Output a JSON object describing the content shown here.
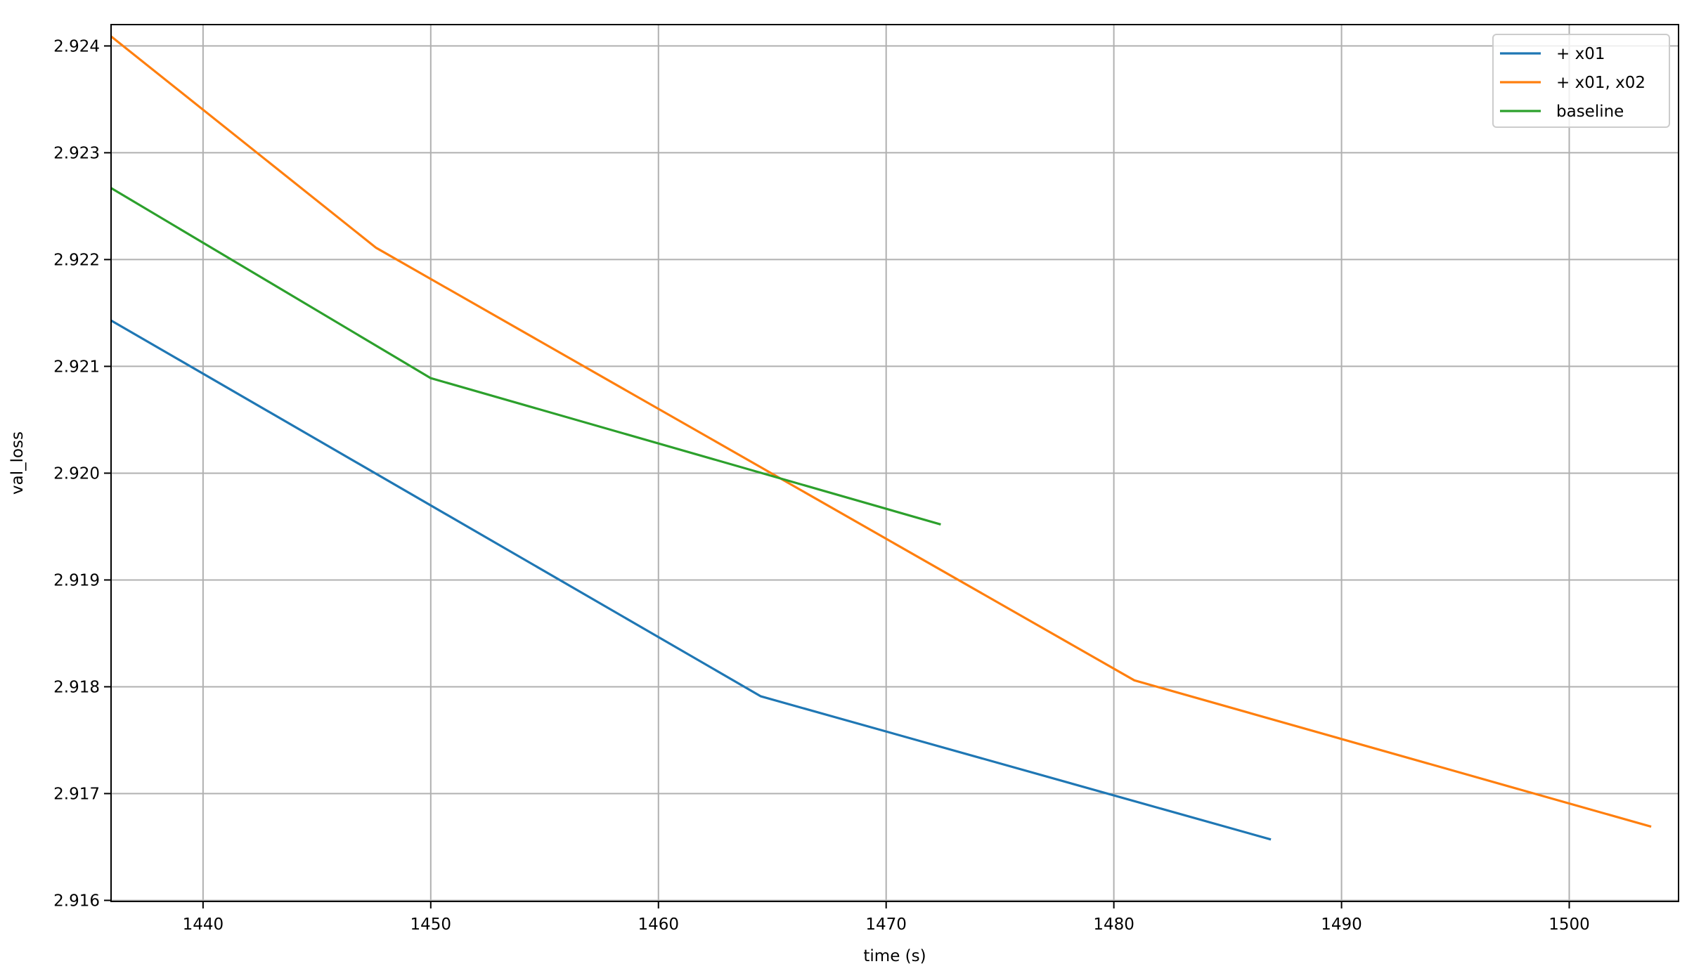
{
  "chart_data": {
    "type": "line",
    "title": "",
    "xlabel": "time (s)",
    "ylabel": "val_loss",
    "xlim": [
      1435.96,
      1504.8
    ],
    "ylim": [
      2.91599,
      2.9242
    ],
    "grid": true,
    "legend_position": "upper right",
    "x_ticks": [
      1440,
      1450,
      1460,
      1470,
      1480,
      1490,
      1500
    ],
    "x_tick_labels": [
      "1440",
      "1450",
      "1460",
      "1470",
      "1480",
      "1490",
      "1500"
    ],
    "y_ticks": [
      2.916,
      2.917,
      2.918,
      2.919,
      2.92,
      2.921,
      2.922,
      2.923,
      2.924
    ],
    "y_tick_labels": [
      "2.916",
      "2.917",
      "2.918",
      "2.919",
      "2.920",
      "2.921",
      "2.922",
      "2.923",
      "2.924"
    ],
    "series": [
      {
        "name": "+ x01",
        "color": "#1f77b4",
        "x": [
          1435.96,
          1464.5,
          1486.9
        ],
        "y": [
          2.92143,
          2.91791,
          2.91657
        ]
      },
      {
        "name": "+ x01, x02",
        "color": "#ff7f0e",
        "x": [
          1435.96,
          1447.6,
          1480.9,
          1503.6
        ],
        "y": [
          2.92409,
          2.92211,
          2.91806,
          2.91669
        ]
      },
      {
        "name": "baseline",
        "color": "#2ca02c",
        "x": [
          1435.96,
          1450.0,
          1472.4
        ],
        "y": [
          2.92267,
          2.92089,
          2.91952
        ]
      }
    ]
  },
  "colors": {
    "grid": "#b0b0b0",
    "axis": "#000000",
    "legend_border": "#cccccc"
  }
}
